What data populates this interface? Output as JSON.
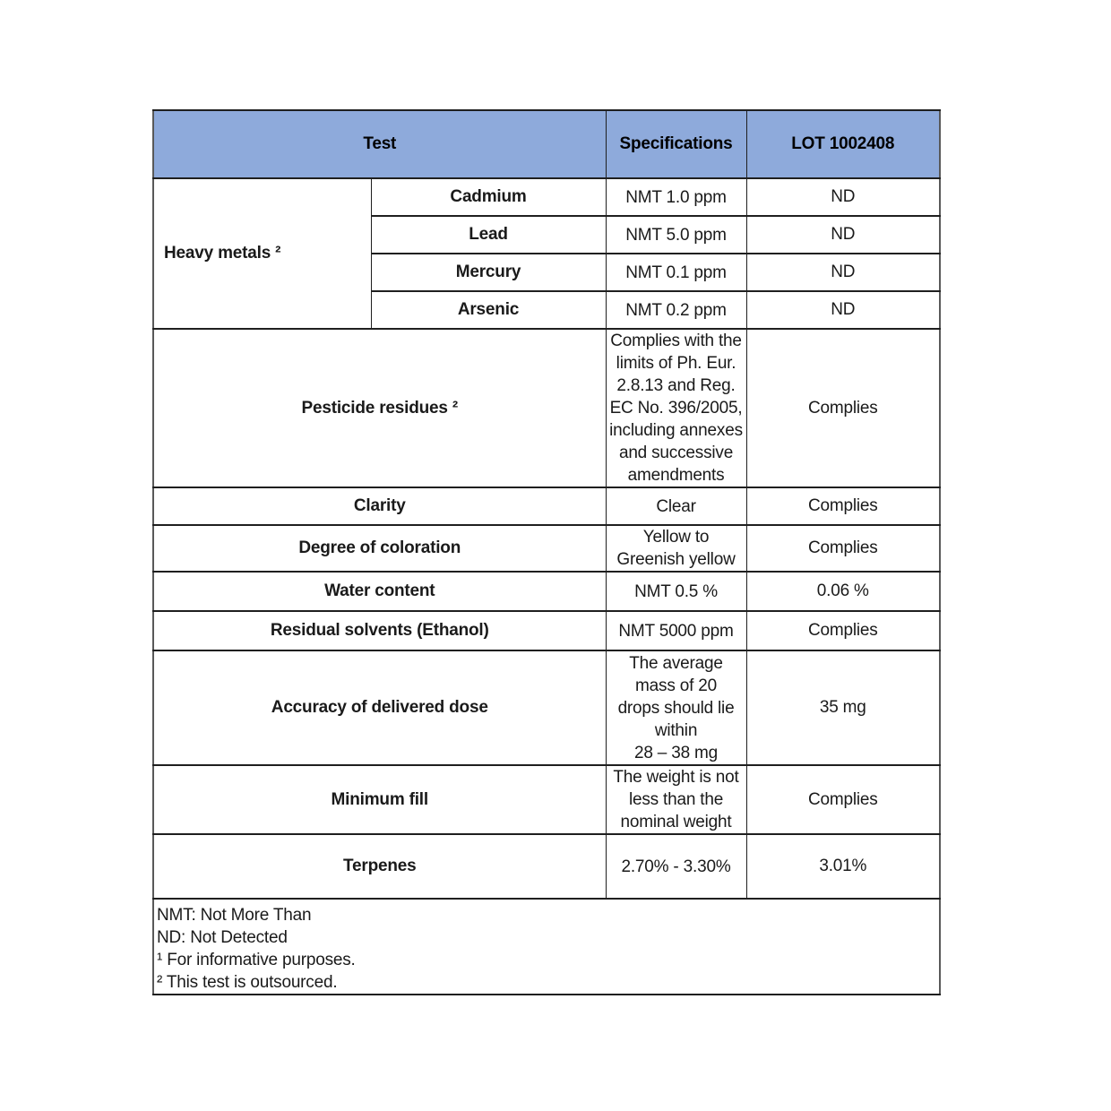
{
  "colors": {
    "header_background": "#8EAADB",
    "border_outer": "#595959",
    "border_inner": "#1f1f1f",
    "text": "#1a1a1a"
  },
  "table": {
    "header": {
      "test_label": "Test",
      "specifications_label": "Specifications",
      "lot_label": "LOT 1002408"
    },
    "heavy_metals": {
      "group_label": "Heavy metals ²",
      "rows": [
        {
          "name": "Cadmium",
          "specification": "NMT 1.0 ppm",
          "result": "ND"
        },
        {
          "name": "Lead",
          "specification": "NMT 5.0 ppm",
          "result": "ND"
        },
        {
          "name": "Mercury",
          "specification": "NMT 0.1 ppm",
          "result": "ND"
        },
        {
          "name": "Arsenic",
          "specification": "NMT 0.2 ppm",
          "result": "ND"
        }
      ]
    },
    "rows": [
      {
        "test": "Pesticide residues ²",
        "specification": "Complies with the\nlimits of Ph. Eur.\n2.8.13 and Reg.\nEC No. 396/2005,\nincluding annexes\nand successive\namendments",
        "result": "Complies"
      },
      {
        "test": "Clarity",
        "specification": "Clear",
        "result": "Complies"
      },
      {
        "test": "Degree of coloration",
        "specification": "Yellow to\nGreenish yellow",
        "result": "Complies"
      },
      {
        "test": "Water content",
        "specification": "NMT 0.5 %",
        "result": "0.06 %"
      },
      {
        "test": "Residual solvents (Ethanol)",
        "specification": "NMT 5000 ppm",
        "result": "Complies"
      },
      {
        "test": "Accuracy of delivered dose",
        "specification": "The average\nmass of 20\ndrops should lie\nwithin\n28 – 38 mg",
        "result": "35 mg"
      },
      {
        "test": "Minimum fill",
        "specification": "The weight is not\nless than the\nnominal weight",
        "result": "Complies"
      },
      {
        "test": "Terpenes",
        "specification": "2.70% - 3.30%",
        "result": "3.01%"
      }
    ],
    "footnotes": [
      "NMT: Not More Than",
      "ND: Not Detected",
      "¹ For informative purposes.",
      "² This test is outsourced."
    ]
  }
}
